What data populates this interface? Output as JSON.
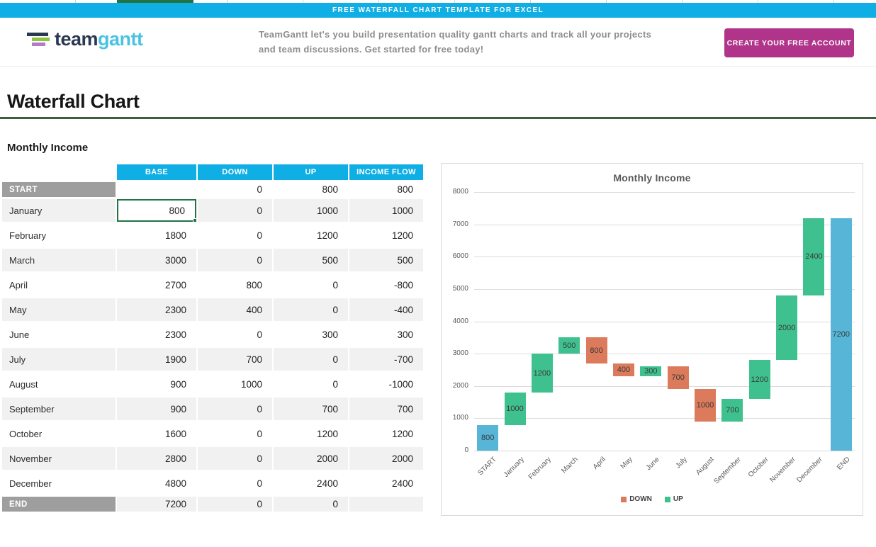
{
  "banner": {
    "text": "FREE WATERFALL CHART TEMPLATE FOR EXCEL"
  },
  "header": {
    "logo": {
      "team": "team",
      "gantt": "gantt"
    },
    "tagline_line1": "TeamGantt let's you build presentation quality gantt charts and track all your projects",
    "tagline_line2": "and team discussions. Get started for free today!",
    "cta_label": "CREATE YOUR FREE ACCOUNT"
  },
  "page": {
    "title": "Waterfall Chart",
    "section_title": "Monthly Income"
  },
  "table": {
    "columns": [
      "BASE",
      "DOWN",
      "UP",
      "INCOME FLOW"
    ],
    "rows": [
      {
        "label": "START",
        "edge": true,
        "values": [
          "",
          "0",
          "800",
          "800"
        ]
      },
      {
        "label": "January",
        "edge": false,
        "values": [
          "800",
          "0",
          "1000",
          "1000"
        ],
        "selected": 0
      },
      {
        "label": "February",
        "edge": false,
        "values": [
          "1800",
          "0",
          "1200",
          "1200"
        ]
      },
      {
        "label": "March",
        "edge": false,
        "values": [
          "3000",
          "0",
          "500",
          "500"
        ]
      },
      {
        "label": "April",
        "edge": false,
        "values": [
          "2700",
          "800",
          "0",
          "-800"
        ]
      },
      {
        "label": "May",
        "edge": false,
        "values": [
          "2300",
          "400",
          "0",
          "-400"
        ]
      },
      {
        "label": "June",
        "edge": false,
        "values": [
          "2300",
          "0",
          "300",
          "300"
        ]
      },
      {
        "label": "July",
        "edge": false,
        "values": [
          "1900",
          "700",
          "0",
          "-700"
        ]
      },
      {
        "label": "August",
        "edge": false,
        "values": [
          "900",
          "1000",
          "0",
          "-1000"
        ]
      },
      {
        "label": "September",
        "edge": false,
        "values": [
          "900",
          "0",
          "700",
          "700"
        ]
      },
      {
        "label": "October",
        "edge": false,
        "values": [
          "1600",
          "0",
          "1200",
          "1200"
        ]
      },
      {
        "label": "November",
        "edge": false,
        "values": [
          "2800",
          "0",
          "2000",
          "2000"
        ]
      },
      {
        "label": "December",
        "edge": false,
        "values": [
          "4800",
          "0",
          "2400",
          "2400"
        ]
      },
      {
        "label": "END",
        "edge": true,
        "values": [
          "7200",
          "0",
          "0",
          ""
        ]
      }
    ]
  },
  "chart_data": {
    "type": "bar",
    "subtype": "waterfall",
    "title": "Monthly Income",
    "categories": [
      "START",
      "January",
      "February",
      "March",
      "April",
      "May",
      "June",
      "July",
      "August",
      "September",
      "October",
      "November",
      "December",
      "END"
    ],
    "bars": [
      {
        "category": "START",
        "from": 0,
        "to": 800,
        "label": "800",
        "series": "start_end"
      },
      {
        "category": "January",
        "from": 800,
        "to": 1800,
        "label": "1000",
        "series": "up"
      },
      {
        "category": "February",
        "from": 1800,
        "to": 3000,
        "label": "1200",
        "series": "up"
      },
      {
        "category": "March",
        "from": 3000,
        "to": 3500,
        "label": "500",
        "series": "up"
      },
      {
        "category": "April",
        "from": 2700,
        "to": 3500,
        "label": "800",
        "series": "down"
      },
      {
        "category": "May",
        "from": 2300,
        "to": 2700,
        "label": "400",
        "series": "down"
      },
      {
        "category": "June",
        "from": 2300,
        "to": 2600,
        "label": "300",
        "series": "up"
      },
      {
        "category": "July",
        "from": 1900,
        "to": 2600,
        "label": "700",
        "series": "down"
      },
      {
        "category": "August",
        "from": 900,
        "to": 1900,
        "label": "1000",
        "series": "down"
      },
      {
        "category": "September",
        "from": 900,
        "to": 1600,
        "label": "700",
        "series": "up"
      },
      {
        "category": "October",
        "from": 1600,
        "to": 2800,
        "label": "1200",
        "series": "up"
      },
      {
        "category": "November",
        "from": 2800,
        "to": 4800,
        "label": "2000",
        "series": "up"
      },
      {
        "category": "December",
        "from": 4800,
        "to": 7200,
        "label": "2400",
        "series": "up"
      },
      {
        "category": "END",
        "from": 0,
        "to": 7200,
        "label": "7200",
        "series": "start_end"
      }
    ],
    "series_colors": {
      "down": "#DC7A5C",
      "up": "#3EC18E",
      "start_end": "#57B5D8"
    },
    "ylim": [
      0,
      8000
    ],
    "yticks": [
      0,
      1000,
      2000,
      3000,
      4000,
      5000,
      6000,
      7000,
      8000
    ],
    "grid": true,
    "legend_position": "bottom",
    "legend": [
      {
        "label": "DOWN",
        "series": "down"
      },
      {
        "label": "UP",
        "series": "up"
      }
    ]
  },
  "colors": {
    "accent_cyan": "#0FAEE4",
    "cta_magenta": "#B0348A",
    "heading_rule_green": "#3E5C40",
    "excel_selection_green": "#217346",
    "table_edge_gray": "#9E9E9E"
  }
}
